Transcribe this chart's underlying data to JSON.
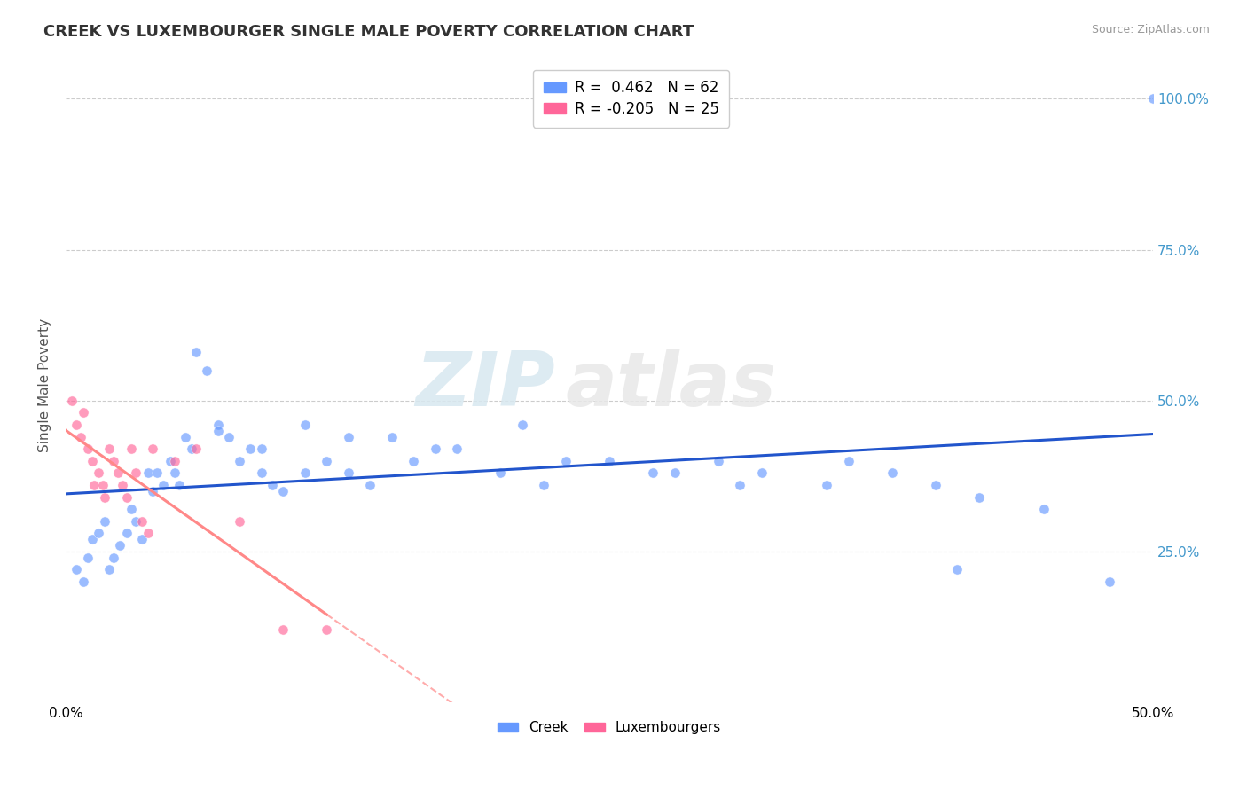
{
  "title": "CREEK VS LUXEMBOURGER SINGLE MALE POVERTY CORRELATION CHART",
  "source": "Source: ZipAtlas.com",
  "ylabel": "Single Male Poverty",
  "xlim": [
    0.0,
    0.5
  ],
  "ylim": [
    0.0,
    1.05
  ],
  "x_ticks": [
    0.0,
    0.5
  ],
  "x_tick_labels": [
    "0.0%",
    "50.0%"
  ],
  "y_ticks": [
    0.25,
    0.5,
    0.75,
    1.0
  ],
  "y_tick_labels": [
    "25.0%",
    "50.0%",
    "75.0%",
    "100.0%"
  ],
  "creek_color": "#6699ff",
  "luxembourger_color": "#ff6699",
  "creek_line_color": "#2255cc",
  "luxembourger_line_color": "#ff8888",
  "creek_R": 0.462,
  "creek_N": 62,
  "luxembourger_R": -0.205,
  "luxembourger_N": 25,
  "watermark_zip": "ZIP",
  "watermark_atlas": "atlas",
  "background_color": "#ffffff",
  "grid_color": "#cccccc",
  "title_color": "#333333",
  "source_color": "#999999",
  "ylabel_color": "#555555",
  "right_tick_color": "#4499cc",
  "creek_x": [
    0.005,
    0.008,
    0.01,
    0.012,
    0.015,
    0.018,
    0.02,
    0.022,
    0.025,
    0.028,
    0.03,
    0.032,
    0.035,
    0.038,
    0.04,
    0.042,
    0.045,
    0.048,
    0.05,
    0.052,
    0.055,
    0.058,
    0.06,
    0.065,
    0.07,
    0.075,
    0.08,
    0.085,
    0.09,
    0.095,
    0.1,
    0.11,
    0.12,
    0.13,
    0.14,
    0.15,
    0.16,
    0.18,
    0.2,
    0.22,
    0.25,
    0.28,
    0.3,
    0.32,
    0.35,
    0.38,
    0.4,
    0.42,
    0.45,
    0.48,
    0.5,
    0.07,
    0.09,
    0.11,
    0.13,
    0.17,
    0.21,
    0.23,
    0.27,
    0.31,
    0.36,
    0.41
  ],
  "creek_y": [
    0.22,
    0.2,
    0.24,
    0.27,
    0.28,
    0.3,
    0.22,
    0.24,
    0.26,
    0.28,
    0.32,
    0.3,
    0.27,
    0.38,
    0.35,
    0.38,
    0.36,
    0.4,
    0.38,
    0.36,
    0.44,
    0.42,
    0.58,
    0.55,
    0.46,
    0.44,
    0.4,
    0.42,
    0.38,
    0.36,
    0.35,
    0.38,
    0.4,
    0.38,
    0.36,
    0.44,
    0.4,
    0.42,
    0.38,
    0.36,
    0.4,
    0.38,
    0.4,
    0.38,
    0.36,
    0.38,
    0.36,
    0.34,
    0.32,
    0.2,
    1.0,
    0.45,
    0.42,
    0.46,
    0.44,
    0.42,
    0.46,
    0.4,
    0.38,
    0.36,
    0.4,
    0.22
  ],
  "luxembourger_x": [
    0.003,
    0.005,
    0.007,
    0.008,
    0.01,
    0.012,
    0.013,
    0.015,
    0.017,
    0.018,
    0.02,
    0.022,
    0.024,
    0.026,
    0.028,
    0.03,
    0.032,
    0.035,
    0.038,
    0.04,
    0.05,
    0.06,
    0.08,
    0.1,
    0.12
  ],
  "luxembourger_y": [
    0.5,
    0.46,
    0.44,
    0.48,
    0.42,
    0.4,
    0.36,
    0.38,
    0.36,
    0.34,
    0.42,
    0.4,
    0.38,
    0.36,
    0.34,
    0.42,
    0.38,
    0.3,
    0.28,
    0.42,
    0.4,
    0.42,
    0.3,
    0.12,
    0.12
  ]
}
